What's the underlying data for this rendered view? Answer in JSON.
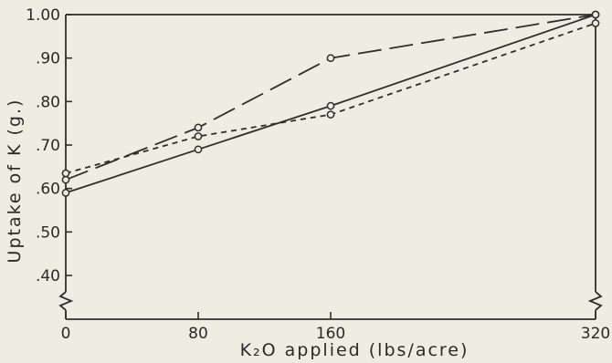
{
  "chart_data": {
    "type": "line",
    "xlabel": "K₂O  applied  (lbs/acre)",
    "ylabel": "Uptake of K (g.)",
    "x_ticks": [
      "0",
      "80",
      "160",
      "320"
    ],
    "y_ticks": [
      ".40",
      ".50",
      ".60",
      ".70",
      ".80",
      ".90",
      "1.00"
    ],
    "x_tick_values": [
      0,
      80,
      160,
      320
    ],
    "y_tick_values": [
      0.4,
      0.5,
      0.6,
      0.7,
      0.8,
      0.9,
      1.0
    ],
    "ylim": [
      0.4,
      1.0
    ],
    "grid": false,
    "axis_break": "zigzag on both y-axes below .40",
    "series": [
      {
        "style": "solid",
        "color": "#2f2f2f",
        "x": [
          0,
          80,
          160,
          320
        ],
        "y": [
          0.59,
          0.69,
          0.79,
          1.0
        ]
      },
      {
        "style": "long-dash",
        "color": "#2f2f2f",
        "x": [
          0,
          80,
          160,
          320
        ],
        "y": [
          0.62,
          0.74,
          0.9,
          1.0
        ]
      },
      {
        "style": "short-dash",
        "color": "#2f2f2f",
        "x": [
          0,
          80,
          160,
          320
        ],
        "y": [
          0.635,
          0.72,
          0.77,
          0.98
        ]
      }
    ]
  }
}
